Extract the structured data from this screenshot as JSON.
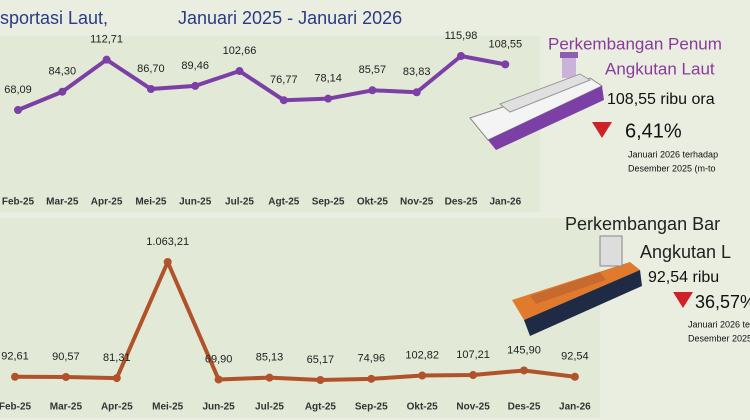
{
  "chart_data": [
    {
      "type": "line",
      "title": "sportasi Laut,",
      "subtitle": "Januari 2025 - Januari 2026",
      "categories": [
        "Feb-25",
        "Mar-25",
        "Apr-25",
        "Mei-25",
        "Jun-25",
        "Jul-25",
        "Agt-25",
        "Sep-25",
        "Okt-25",
        "Nov-25",
        "Des-25",
        "Jan-26"
      ],
      "series": [
        {
          "color": "#7b3fa6",
          "values": [
            68.09,
            84.3,
            112.71,
            86.7,
            89.46,
            102.66,
            76.77,
            78.14,
            85.57,
            83.83,
            115.98,
            108.55
          ],
          "value_labels": [
            "68,09",
            "84,30",
            "112,71",
            "86,70",
            "89,46",
            "102,66",
            "76,77",
            "78,14",
            "85,57",
            "83,83",
            "115,98",
            "108,55"
          ]
        }
      ]
    },
    {
      "type": "line",
      "categories": [
        "Feb-25",
        "Mar-25",
        "Apr-25",
        "Mei-25",
        "Jun-25",
        "Jul-25",
        "Agt-25",
        "Sep-25",
        "Okt-25",
        "Nov-25",
        "Des-25",
        "Jan-26"
      ],
      "series": [
        {
          "color": "#b0532a",
          "values": [
            92.61,
            90.57,
            81.31,
            1063.21,
            69.9,
            85.13,
            65.17,
            74.96,
            102.82,
            107.21,
            145.9,
            92.54
          ],
          "value_labels": [
            "92,61",
            "90,57",
            "81,31",
            "1.063,21",
            "69,90",
            "85,13",
            "65,17",
            "74,96",
            "102,82",
            "107,21",
            "145,90",
            "92,54"
          ]
        }
      ]
    }
  ],
  "panels": [
    {
      "title_lines": [
        "Perkembangan Penum",
        "Angkutan Laut"
      ],
      "value": "108,55 ribu ora",
      "change": "6,41%",
      "note_lines": [
        "Januari 2026 terhadap",
        "Desember 2025 (m-to"
      ]
    },
    {
      "title_lines": [
        "Perkembangan Bar",
        "Angkutan L"
      ],
      "value": "92,54 ribu",
      "change": "36,57%",
      "note_lines": [
        "Januari 2026 ter",
        "Desember 2025"
      ]
    }
  ]
}
